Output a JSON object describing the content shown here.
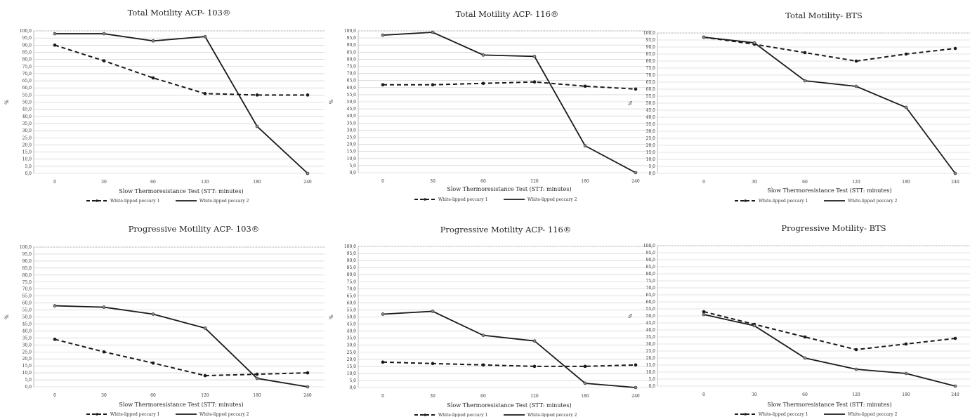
{
  "figure": {
    "x_categories": [
      "0",
      "30",
      "60",
      "120",
      "180",
      "240"
    ],
    "xlabel": "Slow Thermoresistance Test (STT: minutes)",
    "ylabel": "%",
    "y_ticks": [
      "0,0",
      "5,0",
      "10,0",
      "15,0",
      "20,0",
      "25,0",
      "30,0",
      "35,0",
      "40,0",
      "45,0",
      "50,0",
      "55,0",
      "60,0",
      "65,0",
      "70,0",
      "75,0",
      "80,0",
      "85,0",
      "90,0",
      "95,0",
      "100,0"
    ]
  },
  "chart_data": [
    {
      "type": "line",
      "title": "Total Motility ACP- 103®",
      "categories": [
        "0",
        "30",
        "60",
        "120",
        "180",
        "240"
      ],
      "xlabel": "Slow Thermoresistance Test (STT: minutes)",
      "ylabel": "%",
      "ylim": [
        0,
        100
      ],
      "grid": true,
      "legend_position": "bottom",
      "series": [
        {
          "name": "White-lipped peccary 1",
          "style": "dashed",
          "values": [
            90,
            79,
            67,
            56,
            55,
            55
          ]
        },
        {
          "name": "White-lipped peccary 2",
          "style": "solid",
          "values": [
            98,
            98,
            93,
            96,
            33,
            0
          ]
        }
      ]
    },
    {
      "type": "line",
      "title": "Total Motility ACP- 116®",
      "categories": [
        "0",
        "30",
        "60",
        "120",
        "180",
        "240"
      ],
      "xlabel": "Slow Thermoresistance Test (STT: minutes)",
      "ylabel": "%",
      "ylim": [
        0,
        100
      ],
      "grid": true,
      "legend_position": "bottom",
      "series": [
        {
          "name": "White-lipped peccary 1",
          "style": "dashed",
          "values": [
            62,
            62,
            63,
            64,
            61,
            59
          ]
        },
        {
          "name": "White-lipped peccary 2",
          "style": "solid",
          "values": [
            97,
            99,
            83,
            82,
            19,
            0
          ]
        }
      ]
    },
    {
      "type": "line",
      "title": "Total Motility- BTS",
      "categories": [
        "0",
        "30",
        "60",
        "120",
        "180",
        "240"
      ],
      "xlabel": "Slow Thermoresistance Test (STT: minutes)",
      "ylabel": "%",
      "ylim": [
        0,
        100
      ],
      "grid": true,
      "legend_position": "bottom",
      "series": [
        {
          "name": "White-lipped peccary 1",
          "style": "dashed",
          "values": [
            97,
            92,
            86,
            80,
            85,
            89
          ]
        },
        {
          "name": "White-lipped peccary 2",
          "style": "solid",
          "values": [
            97,
            93,
            66,
            62,
            47,
            0
          ]
        }
      ]
    },
    {
      "type": "line",
      "title": "Progressive Motility ACP- 103®",
      "categories": [
        "0",
        "30",
        "60",
        "120",
        "180",
        "240"
      ],
      "xlabel": "Slow Thermoresistance Test (STT: minutes)",
      "ylabel": "%",
      "ylim": [
        0,
        100
      ],
      "grid": true,
      "legend_position": "bottom",
      "series": [
        {
          "name": "White-lipped peccary 1",
          "style": "dashed",
          "values": [
            34,
            25,
            17,
            8,
            9,
            10
          ]
        },
        {
          "name": "White-lipped peccary 2",
          "style": "solid",
          "values": [
            58,
            57,
            52,
            42,
            6,
            0
          ]
        }
      ]
    },
    {
      "type": "line",
      "title": "Progressive Motility ACP- 116®",
      "categories": [
        "0",
        "30",
        "60",
        "120",
        "180",
        "240"
      ],
      "xlabel": "Slow Thermoresistance Test (STT: minutes)",
      "ylabel": "%",
      "ylim": [
        0,
        100
      ],
      "grid": true,
      "legend_position": "bottom",
      "series": [
        {
          "name": "White-lipped peccary 1",
          "style": "dashed",
          "values": [
            18,
            17,
            16,
            15,
            15,
            16
          ]
        },
        {
          "name": "White-lipped peccary 2",
          "style": "solid",
          "values": [
            52,
            54,
            37,
            33,
            3,
            0
          ]
        }
      ]
    },
    {
      "type": "line",
      "title": "Progressive Motility- BTS",
      "categories": [
        "0",
        "30",
        "60",
        "120",
        "180",
        "240"
      ],
      "xlabel": "Slow Thermoresistance Test (STT: minutes)",
      "ylabel": "%",
      "ylim": [
        0,
        100
      ],
      "grid": true,
      "legend_position": "bottom",
      "series": [
        {
          "name": "White-lipped peccary 1",
          "style": "dashed",
          "values": [
            53,
            44,
            35,
            26,
            30,
            34
          ]
        },
        {
          "name": "White-lipped peccary 2",
          "style": "solid",
          "values": [
            51,
            43,
            20,
            12,
            9,
            0
          ]
        }
      ]
    }
  ],
  "colors": {
    "series_line": "#1a1a1a",
    "marker_fill": "#8c8c8c",
    "grid": "#c8c8c8",
    "frame": "#888888",
    "background": "#ffffff"
  }
}
